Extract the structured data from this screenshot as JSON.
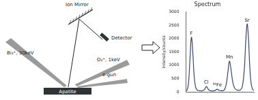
{
  "diagram": {
    "labels": {
      "mirror": "Ion Mirror",
      "detector": "Detector",
      "primary_beam": "Bi₃⁺, 30keV",
      "sputter_beam": "O₂⁺, 1keV",
      "electron_gun": "e-gun",
      "sample": "Apatite"
    }
  },
  "chart_data": {
    "type": "line",
    "title": "Spectrum",
    "y_label": "Intensity/counts",
    "x": [
      0,
      2,
      4,
      6,
      8,
      10,
      12,
      14,
      16,
      18,
      20,
      24,
      27,
      30,
      33,
      36,
      40,
      43,
      46,
      49,
      52,
      56,
      59,
      62,
      64,
      66,
      69,
      72,
      76,
      80,
      83,
      86,
      88,
      90,
      92,
      94,
      96,
      98,
      100
    ],
    "values": [
      40,
      80,
      400,
      1300,
      2050,
      1500,
      600,
      200,
      80,
      50,
      40,
      40,
      80,
      200,
      90,
      40,
      35,
      50,
      100,
      50,
      40,
      60,
      250,
      800,
      1150,
      900,
      350,
      120,
      60,
      70,
      200,
      900,
      1900,
      2550,
      2000,
      900,
      300,
      100,
      50
    ],
    "color": "#34447e",
    "xlim": [
      0,
      100
    ],
    "ylim": [
      0,
      3000
    ],
    "yticks": [
      0,
      500,
      1000,
      1500,
      2000,
      2500,
      3000
    ],
    "tick_labels": "y",
    "grid": false,
    "annotations": [
      {
        "text": "F",
        "x": 8,
        "y": 2050
      },
      {
        "text": "Cl",
        "x": 30,
        "y": 200
      },
      {
        "text": "⁵⁶Fe",
        "x": 46,
        "y": 100
      },
      {
        "text": "Mn",
        "x": 64,
        "y": 1150
      },
      {
        "text": "Sr",
        "x": 90,
        "y": 2550
      }
    ]
  }
}
